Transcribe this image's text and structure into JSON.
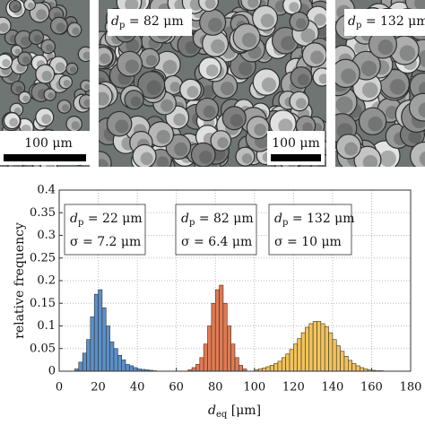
{
  "panels": [
    {
      "scale_label": "100 μm"
    },
    {
      "label": {
        "symbol": "d",
        "subscript": "p",
        "text": " = 82 μm"
      },
      "scale_label": "100 μm"
    },
    {
      "label": {
        "symbol": "d",
        "subscript": "p",
        "text": " = 132 μm"
      }
    }
  ],
  "chart_data": {
    "type": "histogram",
    "ylabel": "relative frequency",
    "xlabel": {
      "symbol": "d",
      "subscript": "eq",
      "text": " [μm]"
    },
    "xlim": [
      0,
      180
    ],
    "ylim": [
      0,
      0.4
    ],
    "xticks": [
      0,
      20,
      40,
      60,
      80,
      100,
      120,
      140,
      160,
      180
    ],
    "yticks": [
      0,
      0.05,
      0.1,
      0.15,
      0.2,
      0.25,
      0.3,
      0.35,
      0.4
    ],
    "grid": true,
    "annotations": [
      {
        "symbol": "d",
        "subscript": "p",
        "text": " = 22 μm",
        "sigma": "σ = 7.2 μm"
      },
      {
        "symbol": "d",
        "subscript": "p",
        "text": " = 82 μm",
        "sigma": "σ = 6.4 μm"
      },
      {
        "symbol": "d",
        "subscript": "p",
        "text": " = 132 μm",
        "sigma": "σ = 10 μm"
      }
    ],
    "series": [
      {
        "color": "#5b8fc9",
        "bins": [
          8,
          10,
          12,
          14,
          16,
          18,
          20,
          22,
          24,
          26,
          28,
          30,
          32,
          34,
          36,
          38,
          40,
          42,
          44,
          46,
          48,
          50
        ],
        "values": [
          0.005,
          0.02,
          0.04,
          0.07,
          0.12,
          0.17,
          0.18,
          0.14,
          0.1,
          0.065,
          0.05,
          0.035,
          0.025,
          0.015,
          0.012,
          0.008,
          0.005,
          0.004,
          0.003,
          0.002,
          0.001
        ]
      },
      {
        "color": "#e07a52",
        "bins": [
          66,
          68,
          70,
          72,
          74,
          76,
          78,
          80,
          82,
          84,
          86,
          88,
          90,
          92,
          94,
          96
        ],
        "values": [
          0.003,
          0.008,
          0.015,
          0.03,
          0.06,
          0.1,
          0.15,
          0.18,
          0.19,
          0.15,
          0.1,
          0.06,
          0.03,
          0.013,
          0.005
        ]
      },
      {
        "color": "#f2c35a",
        "bins": [
          100,
          102,
          104,
          106,
          108,
          110,
          112,
          114,
          116,
          118,
          120,
          122,
          124,
          126,
          128,
          130,
          132,
          134,
          136,
          138,
          140,
          142,
          144,
          146,
          148,
          150,
          152,
          154,
          156,
          158,
          160,
          162,
          164,
          166
        ],
        "values": [
          0.003,
          0.005,
          0.007,
          0.01,
          0.013,
          0.017,
          0.022,
          0.03,
          0.038,
          0.048,
          0.06,
          0.072,
          0.085,
          0.097,
          0.105,
          0.11,
          0.11,
          0.105,
          0.098,
          0.085,
          0.07,
          0.056,
          0.044,
          0.033,
          0.024,
          0.017,
          0.012,
          0.008,
          0.005,
          0.003,
          0.002,
          0.001,
          0.001
        ]
      }
    ]
  }
}
